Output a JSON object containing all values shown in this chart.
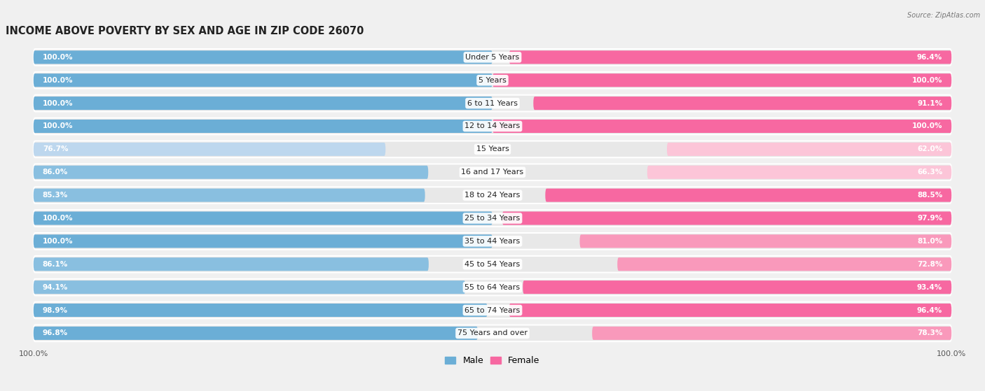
{
  "title": "INCOME ABOVE POVERTY BY SEX AND AGE IN ZIP CODE 26070",
  "source": "Source: ZipAtlas.com",
  "categories": [
    "Under 5 Years",
    "5 Years",
    "6 to 11 Years",
    "12 to 14 Years",
    "15 Years",
    "16 and 17 Years",
    "18 to 24 Years",
    "25 to 34 Years",
    "35 to 44 Years",
    "45 to 54 Years",
    "55 to 64 Years",
    "65 to 74 Years",
    "75 Years and over"
  ],
  "male_values": [
    100.0,
    100.0,
    100.0,
    100.0,
    76.7,
    86.0,
    85.3,
    100.0,
    100.0,
    86.1,
    94.1,
    98.9,
    96.8
  ],
  "female_values": [
    96.4,
    100.0,
    91.1,
    100.0,
    62.0,
    66.3,
    88.5,
    97.9,
    81.0,
    72.8,
    93.4,
    96.4,
    78.3
  ],
  "male_color": "#6BAED6",
  "female_color": "#F768A1",
  "male_color_light": "#BDD7EE",
  "female_color_light": "#FCC5D8",
  "row_bg_color": "#E8E8E8",
  "page_bg_color": "#F0F0F0",
  "bar_bg_color": "#E8E8E8",
  "title_fontsize": 10.5,
  "label_fontsize": 8,
  "value_fontsize": 7.5,
  "max_value": 100.0
}
